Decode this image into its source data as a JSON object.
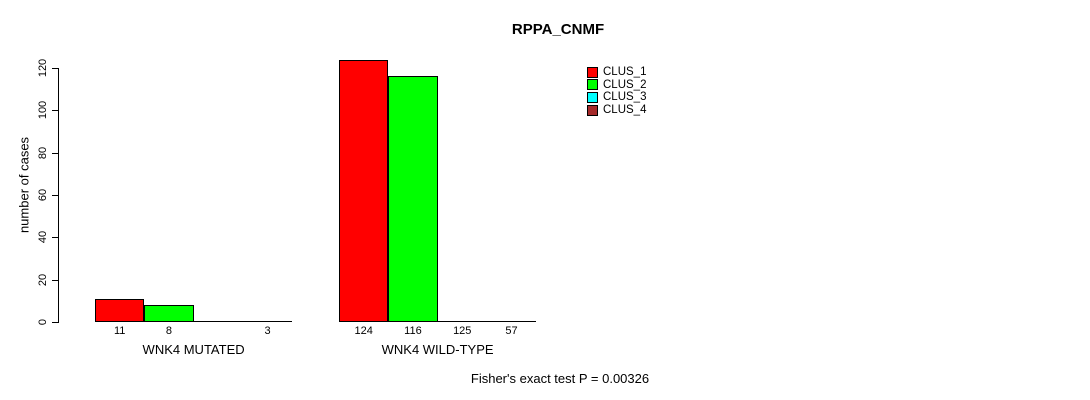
{
  "chart_data": {
    "type": "bar",
    "title": "RPPA_CNMF",
    "ylabel": "number of cases",
    "xlabel": "",
    "ylim": [
      0,
      120
    ],
    "yticks": [
      0,
      20,
      40,
      60,
      80,
      100,
      120
    ],
    "grid": false,
    "legend_position": "top-right-inside",
    "categories": [
      "WNK4 MUTATED",
      "WNK4 WILD-TYPE"
    ],
    "series": [
      {
        "name": "CLUS_1",
        "color": "#FF0000",
        "values": [
          11,
          124
        ]
      },
      {
        "name": "CLUS_2",
        "color": "#00FF00",
        "values": [
          8,
          116
        ]
      },
      {
        "name": "CLUS_3",
        "color": "#00FFFF",
        "values": [
          0,
          125
        ]
      },
      {
        "name": "CLUS_4",
        "color": "#A52A2A",
        "values": [
          3,
          57
        ]
      }
    ],
    "bar_value_labels": [
      [
        "11",
        "8",
        "",
        "3"
      ],
      [
        "124",
        "116",
        "125",
        "57"
      ]
    ],
    "footer": "Fisher's exact test P = 0.00326"
  }
}
